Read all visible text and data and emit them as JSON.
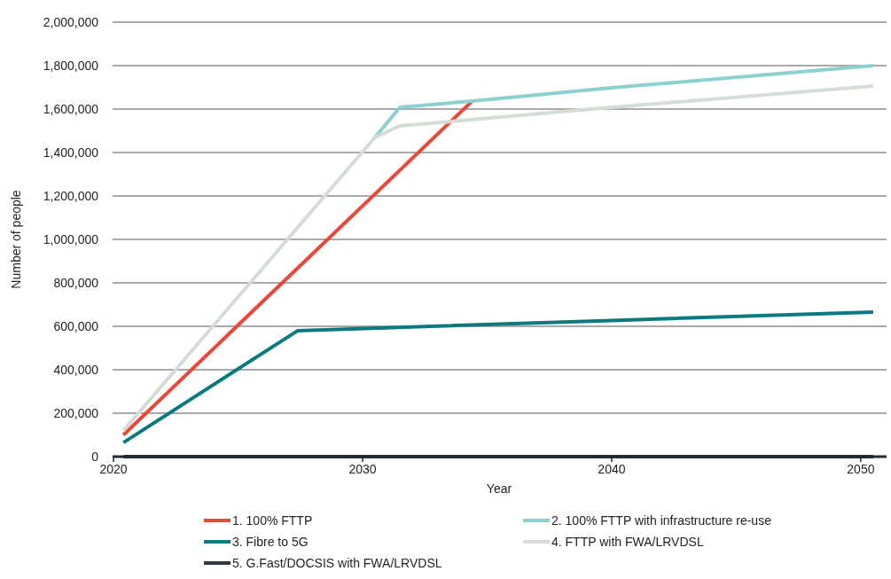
{
  "chart_data": {
    "type": "line",
    "xlabel": "Year",
    "ylabel": "Number of people",
    "xlim": [
      2020,
      2051
    ],
    "xticks": [
      2020,
      2030,
      2040,
      2050
    ],
    "ylim": [
      0,
      2000000
    ],
    "yticks": [
      {
        "value": 0,
        "label": "0"
      },
      {
        "value": 200000,
        "label": "200,000"
      },
      {
        "value": 400000,
        "label": "400,000"
      },
      {
        "value": 600000,
        "label": "600,000"
      },
      {
        "value": 800000,
        "label": "800,000"
      },
      {
        "value": 1000000,
        "label": "1,000,000"
      },
      {
        "value": 1200000,
        "label": "1,200,000"
      },
      {
        "value": 1400000,
        "label": "1,400,000"
      },
      {
        "value": 1600000,
        "label": "1,600,000"
      },
      {
        "value": 1800000,
        "label": "1,800,000"
      },
      {
        "value": 2000000,
        "label": "2,000,000"
      }
    ],
    "grid": "y",
    "legend": "bottom",
    "line_style": "solid",
    "marker": "none",
    "series": [
      {
        "name": "1. 100% FTTP",
        "color": "#e8473a",
        "x": [
          2020.4,
          2034.4
        ],
        "values": [
          100000,
          1637000
        ]
      },
      {
        "name": "2. 100% FTTP with infrastructure re-use",
        "color": "#8dd0d2",
        "x": [
          2030.5,
          2031.5,
          2034.4,
          2040,
          2050.5
        ],
        "values": [
          1470000,
          1608000,
          1637000,
          1698000,
          1800000
        ]
      },
      {
        "name": "3. Fibre to 5G",
        "color": "#0b7a80",
        "x": [
          2020.4,
          2027.4,
          2040,
          2050.5
        ],
        "values": [
          65000,
          580000,
          627000,
          665000
        ]
      },
      {
        "name": "4. FTTP with FWA/LRVDSL",
        "color": "#d3ddd4",
        "x": [
          2020.4,
          2030.5,
          2031.5,
          2040,
          2050.5
        ],
        "values": [
          120000,
          1470000,
          1522000,
          1608000,
          1706000
        ]
      },
      {
        "name": "5. G.Fast/DOCSIS with FWA/LRVDSL",
        "color": "#2f3a45",
        "x": [
          2020.4,
          2050.5
        ],
        "values": [
          0,
          0
        ]
      }
    ]
  }
}
